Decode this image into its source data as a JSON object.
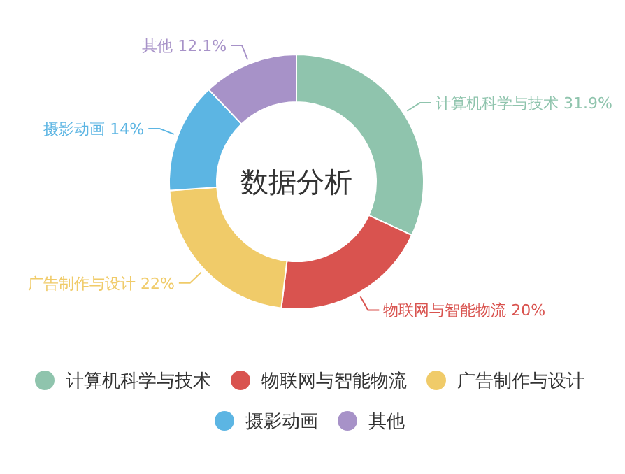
{
  "chart_data": {
    "type": "donut",
    "title": "数据分析",
    "categories": [
      "计算机科学与技术",
      "物联网与智能物流",
      "广告制作与设计",
      "摄影动画",
      "其他"
    ],
    "values": [
      31.9,
      20,
      22,
      14,
      12.1
    ],
    "value_labels": [
      "31.9%",
      "20%",
      "22%",
      "14%",
      "12.1%"
    ],
    "colors": [
      "#8fc4ad",
      "#d9534f",
      "#f0cb69",
      "#5cb5e3",
      "#a792c8"
    ],
    "legend": "bottom"
  }
}
